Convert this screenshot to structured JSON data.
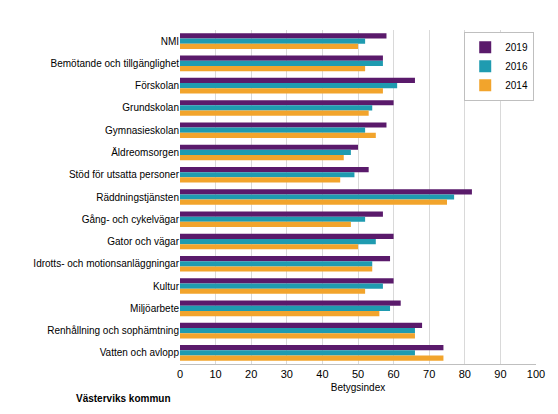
{
  "chart_data": {
    "type": "bar",
    "orientation": "horizontal",
    "categories": [
      "NMI",
      "Bemötande och tillgänglighet",
      "Förskolan",
      "Grundskolan",
      "Gymnasieskolan",
      "Äldreomsorgen",
      "Stöd för utsatta personer",
      "Räddningstjänsten",
      "Gång- och cykelvägar",
      "Gator och vägar",
      "Idrotts- och motionsanläggningar",
      "Kultur",
      "Miljöarbete",
      "Renhållning och sophämtning",
      "Vatten och avlopp"
    ],
    "series": [
      {
        "name": "2019",
        "color": "#5a1a6b",
        "values": [
          58,
          57,
          66,
          60,
          58,
          50,
          53,
          82,
          57,
          60,
          59,
          60,
          62,
          68,
          74
        ]
      },
      {
        "name": "2016",
        "color": "#1f9bb0",
        "values": [
          52,
          57,
          61,
          54,
          52,
          48,
          49,
          77,
          52,
          55,
          54,
          57,
          59,
          66,
          66
        ]
      },
      {
        "name": "2014",
        "color": "#f2a42c",
        "values": [
          50,
          52,
          57,
          53,
          55,
          46,
          45,
          75,
          48,
          50,
          54,
          52,
          56,
          66,
          74
        ]
      }
    ],
    "x_label": "Betygsindex",
    "annotations": [
      "Västerviks kommun"
    ],
    "xlim": [
      0,
      100
    ],
    "xticks": [
      0,
      10,
      20,
      30,
      40,
      50,
      60,
      70,
      80,
      90,
      100
    ],
    "grid": true,
    "legend": "top-right"
  }
}
